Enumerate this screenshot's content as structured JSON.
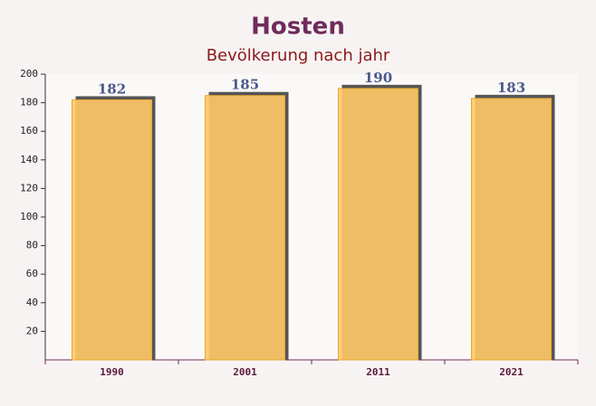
{
  "chart_data": {
    "type": "bar",
    "title": "Hosten",
    "subtitle": "Bevölkerung nach jahr",
    "categories": [
      "1990",
      "2001",
      "2011",
      "2021"
    ],
    "values": [
      182,
      185,
      190,
      183
    ],
    "color": "#ffc966",
    "ylim": [
      0,
      200
    ],
    "yticks": [
      20,
      40,
      60,
      80,
      100,
      120,
      140,
      160,
      180,
      200
    ]
  }
}
